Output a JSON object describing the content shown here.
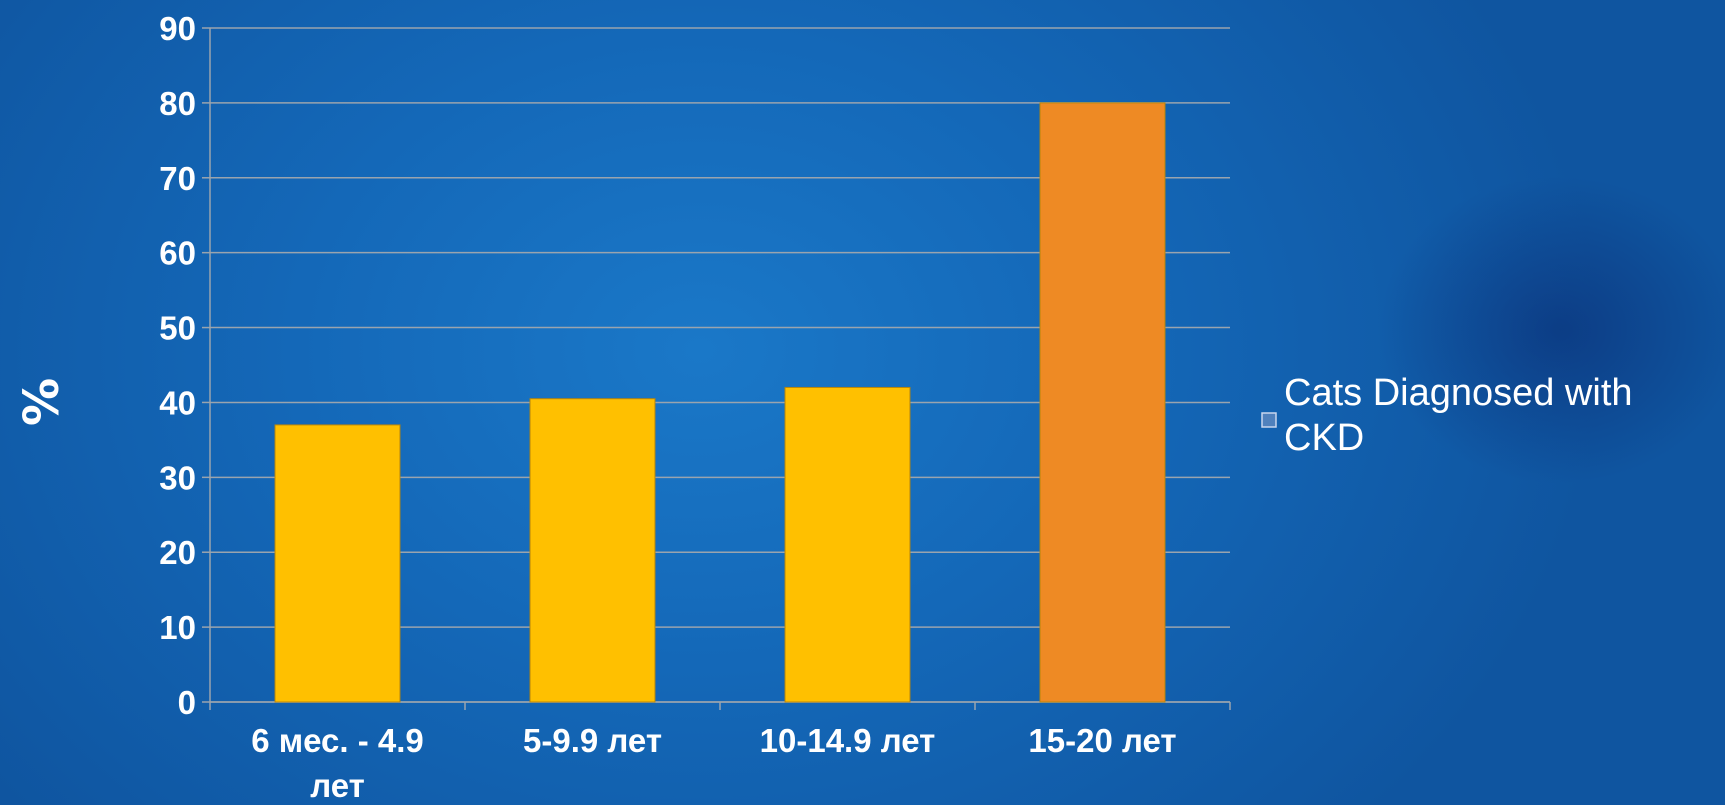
{
  "chart_data": {
    "type": "bar",
    "categories": [
      "6 мес. - 4.9 лет",
      "5-9.9 лет",
      "10-14.9 лет",
      "15-20 лет"
    ],
    "values": [
      37,
      40.5,
      42,
      80
    ],
    "bar_colors": [
      "#ffc000",
      "#ffc000",
      "#ffc000",
      "#ee8a24"
    ],
    "ylabel": "%",
    "xlabel": "",
    "ylim": [
      0,
      90
    ],
    "yticks": [
      0,
      10,
      20,
      30,
      40,
      50,
      60,
      70,
      80,
      90
    ],
    "grid": true,
    "legend": {
      "position": "right",
      "entries": [
        {
          "name": "Cats Diagnosed with CKD",
          "color": "#4f81bd"
        }
      ]
    }
  }
}
